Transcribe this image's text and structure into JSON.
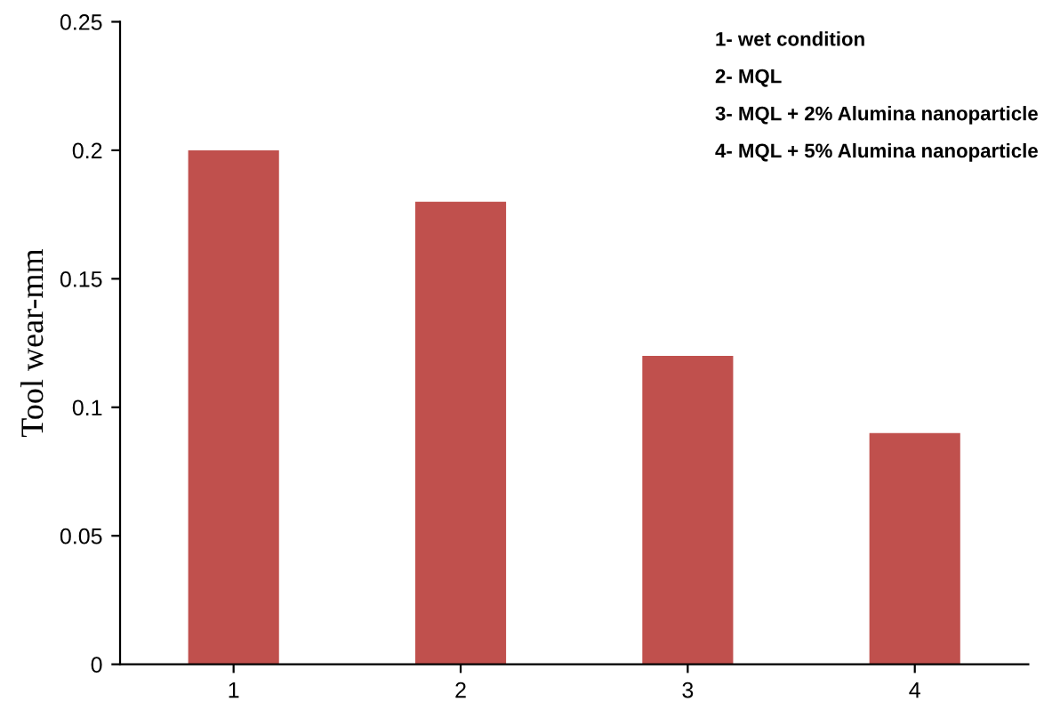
{
  "chart_data": {
    "type": "bar",
    "ylabel": "Tool wear-mm",
    "categories": [
      "1",
      "2",
      "3",
      "4"
    ],
    "values": [
      0.2,
      0.18,
      0.12,
      0.09
    ],
    "color": "#c0504d",
    "ylim": [
      0,
      0.25
    ],
    "yticks": [
      {
        "value": 0,
        "label": "0"
      },
      0.05,
      0.1,
      0.15,
      0.2,
      0.25
    ],
    "annotations": [
      "1- wet condition",
      "2- MQL",
      "3- MQL + 2% Alumina nanoparticle",
      "4- MQL + 5% Alumina nanoparticle"
    ],
    "grid": false
  }
}
